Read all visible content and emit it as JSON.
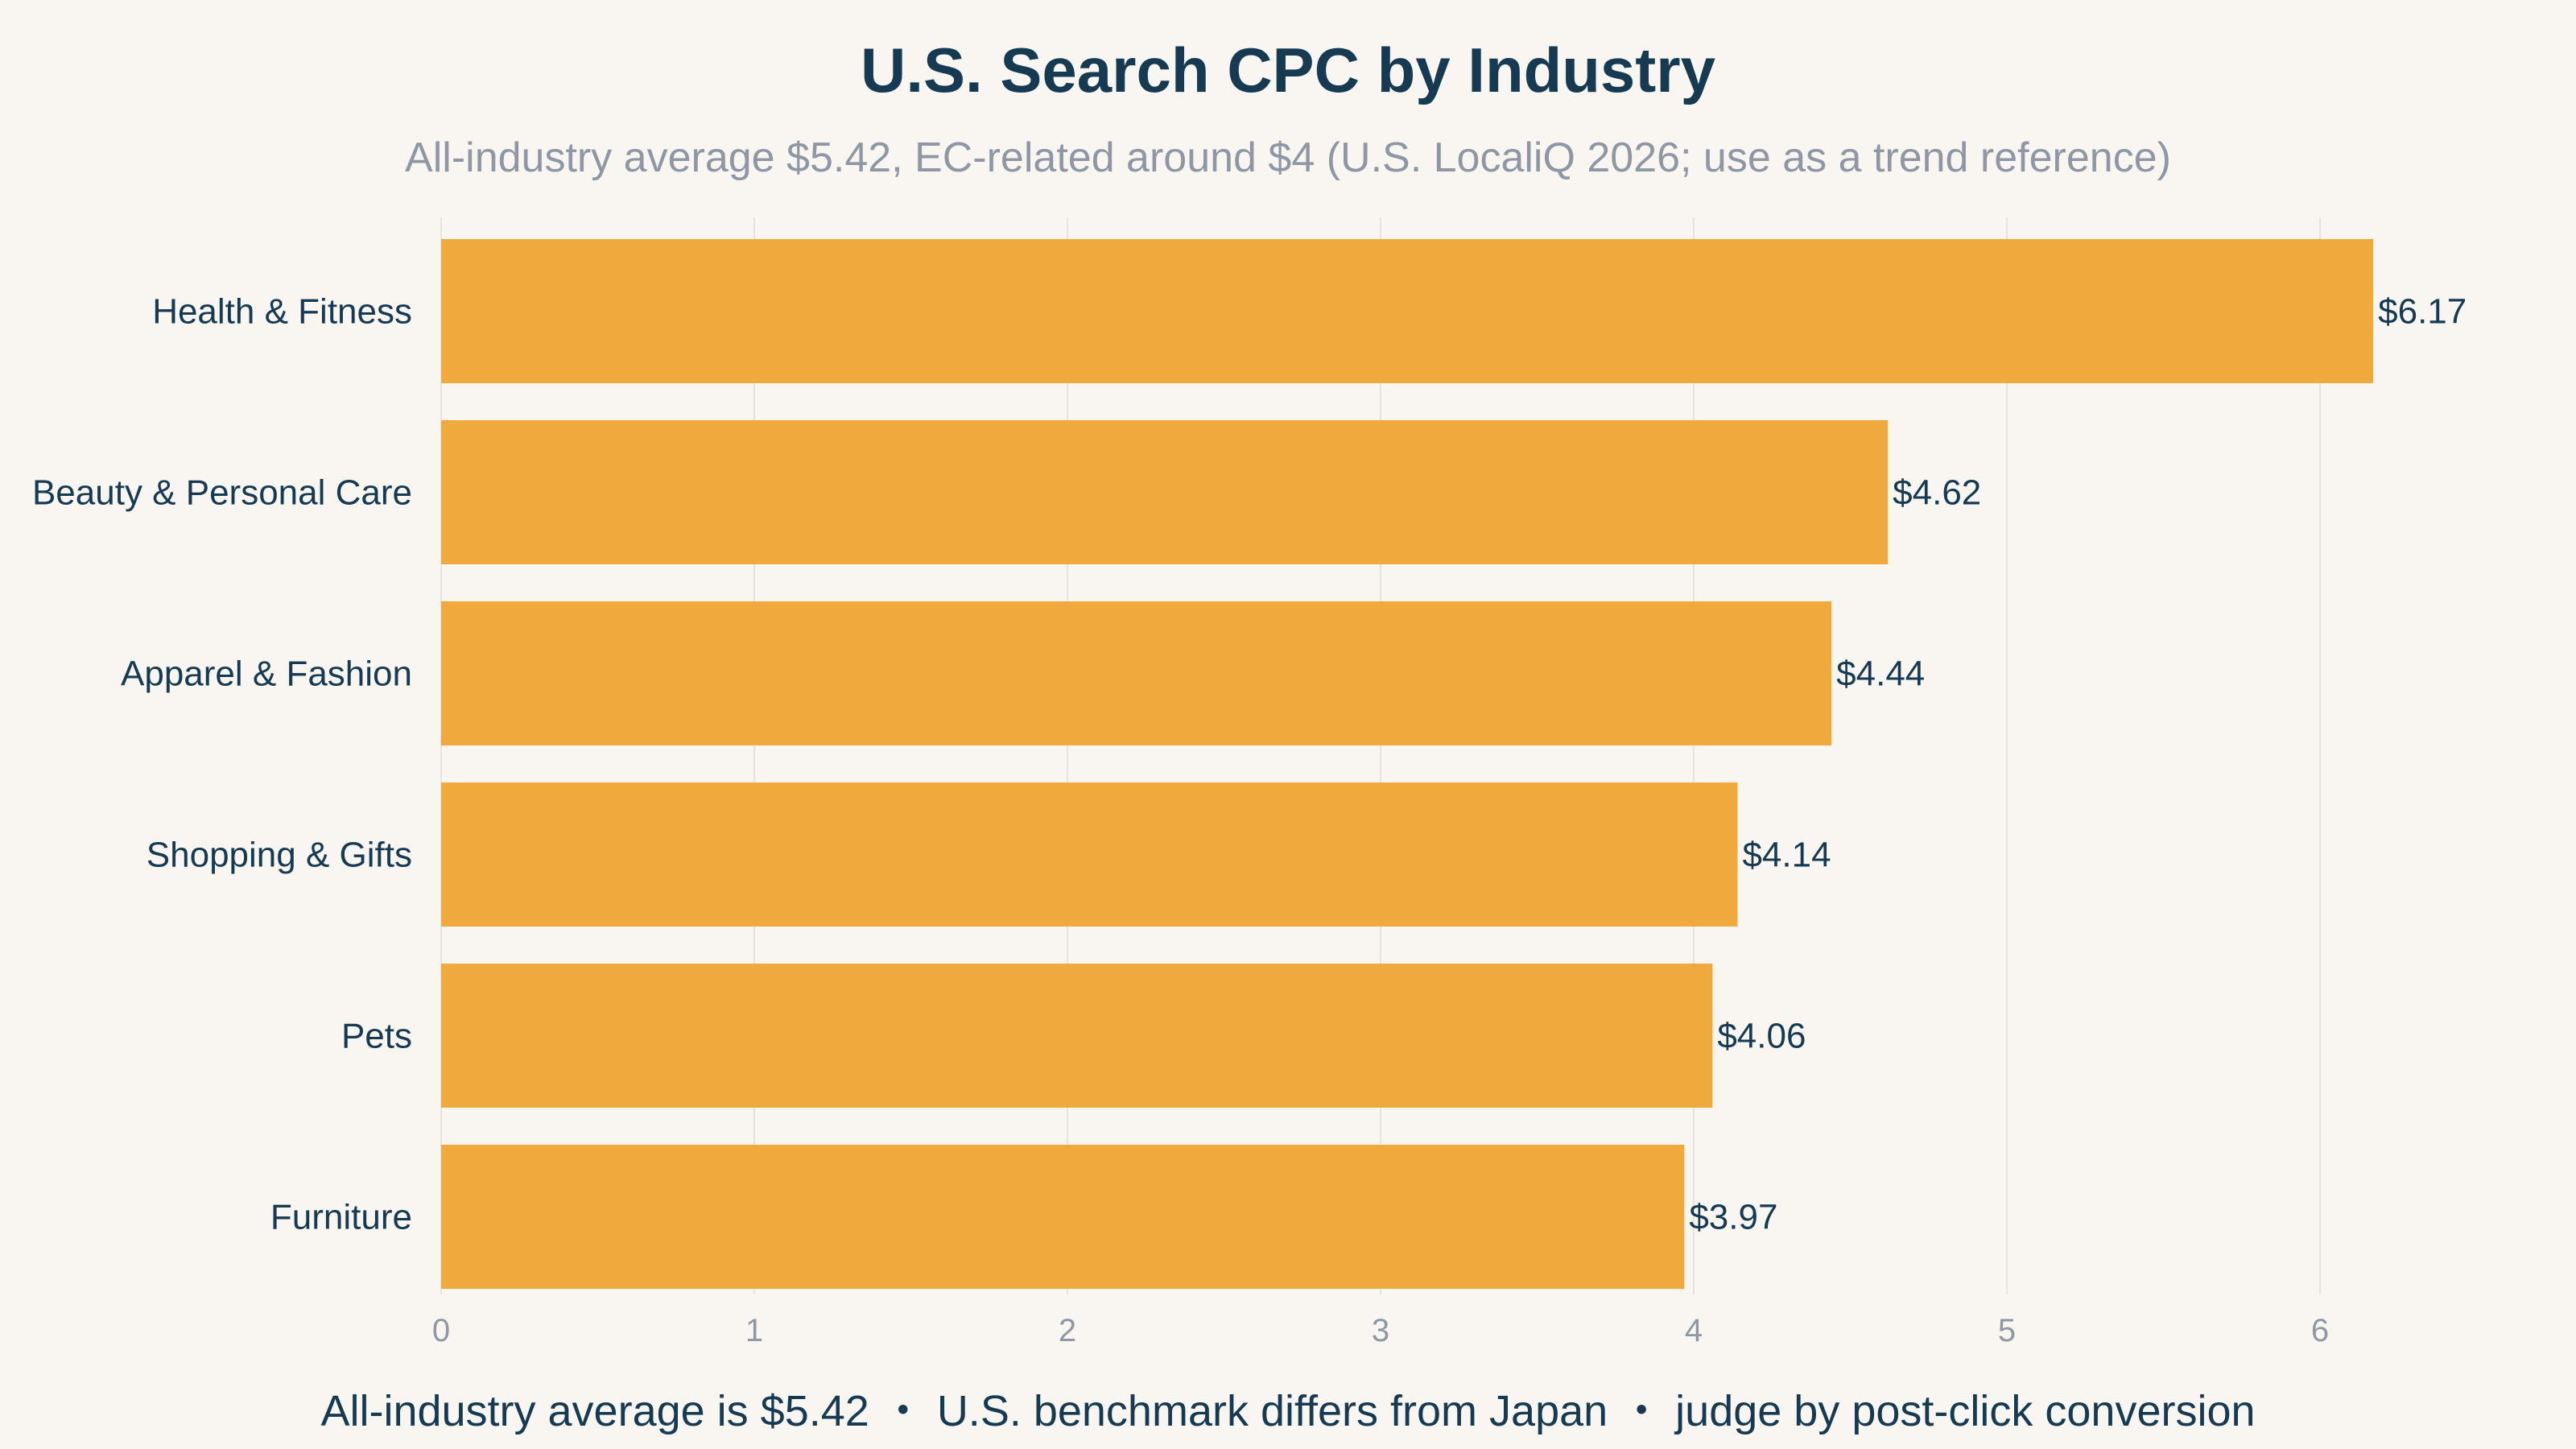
{
  "chart_data": {
    "type": "bar",
    "orientation": "horizontal",
    "title": "U.S. Search CPC by Industry",
    "subtitle": "All-industry average $5.42, EC-related around $4 (U.S. LocaliQ 2026; use as a trend reference)",
    "categories": [
      "Health & Fitness",
      "Beauty & Personal Care",
      "Apparel & Fashion",
      "Shopping & Gifts",
      "Pets",
      "Furniture"
    ],
    "values": [
      6.17,
      4.62,
      4.44,
      4.14,
      4.06,
      3.97
    ],
    "value_labels": [
      "$6.17",
      "$4.62",
      "$4.44",
      "$4.14",
      "$4.06",
      "$3.97"
    ],
    "x_ticks": [
      0,
      1,
      2,
      3,
      4,
      5,
      6
    ],
    "xlim": [
      0,
      6.5
    ],
    "grid": "vertical",
    "bar_color": "#f0a93c",
    "footer": "All-industry average is $5.42 ・ U.S. benchmark differs from Japan ・ judge by post-click conversion"
  }
}
